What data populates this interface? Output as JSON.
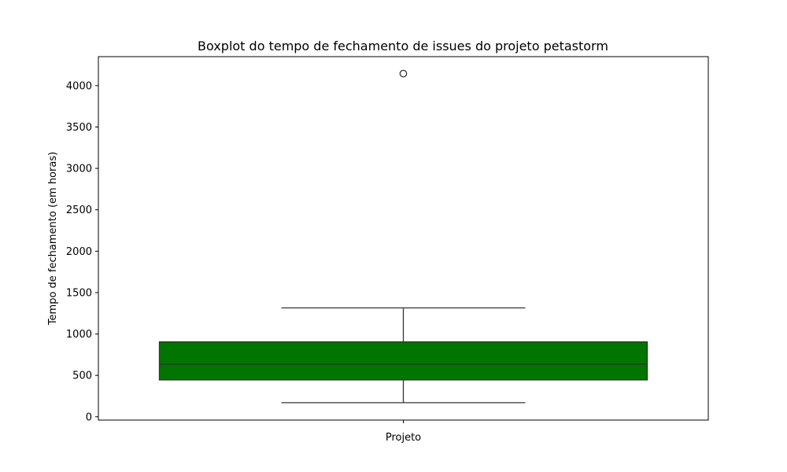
{
  "chart_data": {
    "type": "boxplot",
    "title": "Boxplot do tempo de fechamento de issues do projeto petastorm",
    "xlabel": "",
    "ylabel": "Tempo de fechamento (em horas)",
    "categories": [
      "Projeto"
    ],
    "ylim": [
      -40,
      4350
    ],
    "yticks": [
      0,
      500,
      1000,
      1500,
      2000,
      2500,
      3000,
      3500,
      4000
    ],
    "ytick_labels": [
      "0",
      "500",
      "1000",
      "1500",
      "2000",
      "2500",
      "3000",
      "3500",
      "4000"
    ],
    "grid": false,
    "legend": "none",
    "box": {
      "category": "Projeto",
      "whisker_low": 170,
      "q1": 445,
      "median": 635,
      "q3": 905,
      "whisker_high": 1315,
      "outliers": [
        4145
      ]
    },
    "colors": {
      "box_fill": "#007500",
      "line": "#333333",
      "axis": "#000000"
    }
  }
}
